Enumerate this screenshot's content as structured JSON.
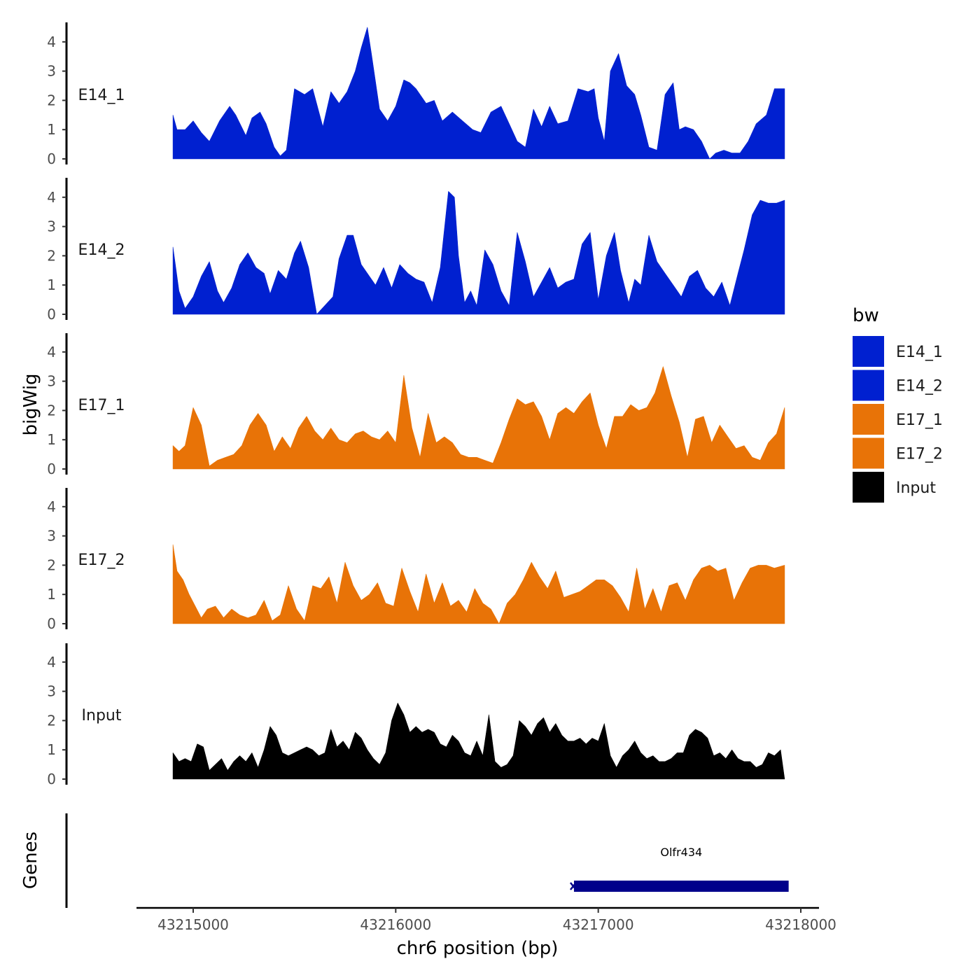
{
  "chart_data": {
    "type": "area",
    "ylabel": "bigWig",
    "xlabel": "chr6 position (bp)",
    "x_ticks": [
      43215000,
      43216000,
      43217000,
      43218000
    ],
    "x_tick_labels": [
      "43215000",
      "43216000",
      "43217000",
      "43218000"
    ],
    "xlim": [
      43214600,
      43218000
    ],
    "ylim": [
      0,
      4.6
    ],
    "y_ticks": [
      0,
      1,
      2,
      3,
      4
    ],
    "y_tick_labels": [
      "0",
      "1",
      "2",
      "3",
      "4"
    ],
    "series": [
      {
        "name": "E14_1",
        "color": "#0020d0",
        "x": [
          43214900,
          43214920,
          43214960,
          43215000,
          43215040,
          43215080,
          43215130,
          43215180,
          43215210,
          43215260,
          43215290,
          43215330,
          43215360,
          43215400,
          43215430,
          43215460,
          43215500,
          43215550,
          43215590,
          43215640,
          43215680,
          43215720,
          43215760,
          43215800,
          43215830,
          43215860,
          43215880,
          43215920,
          43215960,
          43216000,
          43216040,
          43216070,
          43216100,
          43216150,
          43216190,
          43216230,
          43216280,
          43216330,
          43216380,
          43216420,
          43216470,
          43216520,
          43216560,
          43216600,
          43216640,
          43216680,
          43216720,
          43216760,
          43216800,
          43216850,
          43216900,
          43216950,
          43216980,
          43217000,
          43217030,
          43217060,
          43217100,
          43217140,
          43217180,
          43217210,
          43217250,
          43217290,
          43217330,
          43217370,
          43217400,
          43217430,
          43217470,
          43217510,
          43217550,
          43217580,
          43217620,
          43217660,
          43217700,
          43217740,
          43217780,
          43217830,
          43217870,
          43217900,
          43217920
        ],
        "values": [
          1.5,
          1.0,
          1.0,
          1.3,
          0.9,
          0.6,
          1.3,
          1.8,
          1.5,
          0.8,
          1.4,
          1.6,
          1.2,
          0.4,
          0.1,
          0.3,
          2.4,
          2.2,
          2.4,
          1.1,
          2.3,
          1.9,
          2.3,
          3.0,
          3.8,
          4.5,
          3.6,
          1.7,
          1.3,
          1.8,
          2.7,
          2.6,
          2.4,
          1.9,
          2.0,
          1.3,
          1.6,
          1.3,
          1.0,
          0.9,
          1.6,
          1.8,
          1.2,
          0.6,
          0.4,
          1.7,
          1.1,
          1.8,
          1.2,
          1.3,
          2.4,
          2.3,
          2.4,
          1.4,
          0.6,
          3.0,
          3.6,
          2.5,
          2.2,
          1.5,
          0.4,
          0.3,
          2.2,
          2.6,
          1.0,
          1.1,
          1.0,
          0.6,
          0.0,
          0.2,
          0.3,
          0.2,
          0.2,
          0.6,
          1.2,
          1.5,
          2.4,
          2.4,
          2.4
        ]
      },
      {
        "name": "E14_2",
        "color": "#0020d0",
        "x": [
          43214900,
          43214930,
          43214960,
          43215000,
          43215040,
          43215080,
          43215120,
          43215150,
          43215190,
          43215230,
          43215270,
          43215310,
          43215350,
          43215380,
          43215420,
          43215460,
          43215500,
          43215530,
          43215570,
          43215610,
          43215650,
          43215690,
          43215720,
          43215760,
          43215790,
          43215830,
          43215870,
          43215900,
          43215940,
          43215980,
          43216020,
          43216060,
          43216100,
          43216140,
          43216180,
          43216220,
          43216260,
          43216290,
          43216310,
          43216340,
          43216370,
          43216400,
          43216440,
          43216480,
          43216520,
          43216560,
          43216600,
          43216640,
          43216680,
          43216720,
          43216760,
          43216800,
          43216840,
          43216880,
          43216920,
          43216960,
          43217000,
          43217040,
          43217080,
          43217110,
          43217150,
          43217180,
          43217210,
          43217250,
          43217290,
          43217330,
          43217370,
          43217410,
          43217450,
          43217490,
          43217530,
          43217570,
          43217610,
          43217650,
          43217690,
          43217720,
          43217760,
          43217800,
          43217840,
          43217880,
          43217920
        ],
        "values": [
          2.3,
          0.8,
          0.2,
          0.6,
          1.3,
          1.8,
          0.8,
          0.4,
          0.9,
          1.7,
          2.1,
          1.6,
          1.4,
          0.7,
          1.5,
          1.2,
          2.1,
          2.5,
          1.6,
          0.0,
          0.3,
          0.6,
          1.9,
          2.7,
          2.7,
          1.7,
          1.3,
          1.0,
          1.6,
          0.9,
          1.7,
          1.4,
          1.2,
          1.1,
          0.4,
          1.6,
          4.2,
          4.0,
          2.0,
          0.4,
          0.8,
          0.3,
          2.2,
          1.7,
          0.8,
          0.3,
          2.8,
          1.8,
          0.6,
          1.1,
          1.6,
          0.9,
          1.1,
          1.2,
          2.4,
          2.8,
          0.5,
          2.0,
          2.8,
          1.5,
          0.4,
          1.2,
          1.0,
          2.7,
          1.8,
          1.4,
          1.0,
          0.6,
          1.3,
          1.5,
          0.9,
          0.6,
          1.1,
          0.3,
          1.4,
          2.2,
          3.4,
          3.9,
          3.8,
          3.8,
          3.9
        ]
      },
      {
        "name": "E17_1",
        "color": "#e87307",
        "x": [
          43214900,
          43214930,
          43214960,
          43215000,
          43215040,
          43215080,
          43215120,
          43215160,
          43215200,
          43215240,
          43215280,
          43215320,
          43215360,
          43215400,
          43215440,
          43215480,
          43215520,
          43215560,
          43215600,
          43215640,
          43215680,
          43215720,
          43215760,
          43215800,
          43215840,
          43215880,
          43215920,
          43215960,
          43216000,
          43216040,
          43216080,
          43216120,
          43216160,
          43216200,
          43216240,
          43216280,
          43216320,
          43216360,
          43216400,
          43216440,
          43216480,
          43216520,
          43216560,
          43216600,
          43216640,
          43216680,
          43216720,
          43216760,
          43216800,
          43216840,
          43216880,
          43216920,
          43216960,
          43217000,
          43217040,
          43217080,
          43217120,
          43217160,
          43217200,
          43217240,
          43217280,
          43217320,
          43217360,
          43217400,
          43217440,
          43217480,
          43217520,
          43217560,
          43217600,
          43217640,
          43217680,
          43217720,
          43217760,
          43217800,
          43217840,
          43217880,
          43217920
        ],
        "values": [
          0.8,
          0.6,
          0.8,
          2.1,
          1.5,
          0.1,
          0.3,
          0.4,
          0.5,
          0.8,
          1.5,
          1.9,
          1.5,
          0.6,
          1.1,
          0.7,
          1.4,
          1.8,
          1.3,
          1.0,
          1.4,
          1.0,
          0.9,
          1.2,
          1.3,
          1.1,
          1.0,
          1.3,
          0.9,
          3.2,
          1.4,
          0.4,
          1.9,
          0.9,
          1.1,
          0.9,
          0.5,
          0.4,
          0.4,
          0.3,
          0.2,
          0.9,
          1.7,
          2.4,
          2.2,
          2.3,
          1.8,
          1.0,
          1.9,
          2.1,
          1.9,
          2.3,
          2.6,
          1.5,
          0.7,
          1.8,
          1.8,
          2.2,
          2.0,
          2.1,
          2.6,
          3.5,
          2.5,
          1.6,
          0.4,
          1.7,
          1.8,
          0.9,
          1.5,
          1.1,
          0.7,
          0.8,
          0.4,
          0.3,
          0.9,
          1.2,
          2.1
        ]
      },
      {
        "name": "E17_2",
        "color": "#e87307",
        "x": [
          43214900,
          43214920,
          43214950,
          43214980,
          43215010,
          43215040,
          43215070,
          43215110,
          43215150,
          43215190,
          43215230,
          43215270,
          43215310,
          43215350,
          43215390,
          43215430,
          43215470,
          43215510,
          43215550,
          43215590,
          43215630,
          43215670,
          43215710,
          43215750,
          43215790,
          43215830,
          43215870,
          43215910,
          43215950,
          43215990,
          43216030,
          43216070,
          43216110,
          43216150,
          43216190,
          43216230,
          43216270,
          43216310,
          43216350,
          43216390,
          43216430,
          43216470,
          43216510,
          43216550,
          43216590,
          43216630,
          43216670,
          43216710,
          43216750,
          43216790,
          43216830,
          43216870,
          43216910,
          43216950,
          43216990,
          43217030,
          43217070,
          43217110,
          43217150,
          43217190,
          43217230,
          43217270,
          43217310,
          43217350,
          43217390,
          43217430,
          43217470,
          43217510,
          43217550,
          43217590,
          43217630,
          43217670,
          43217710,
          43217750,
          43217790,
          43217830,
          43217870,
          43217920
        ],
        "values": [
          2.7,
          1.8,
          1.5,
          1.0,
          0.6,
          0.2,
          0.5,
          0.6,
          0.2,
          0.5,
          0.3,
          0.2,
          0.3,
          0.8,
          0.1,
          0.3,
          1.3,
          0.5,
          0.1,
          1.3,
          1.2,
          1.6,
          0.7,
          2.1,
          1.3,
          0.8,
          1.0,
          1.4,
          0.7,
          0.6,
          1.9,
          1.1,
          0.4,
          1.7,
          0.7,
          1.4,
          0.6,
          0.8,
          0.4,
          1.2,
          0.7,
          0.5,
          0.0,
          0.7,
          1.0,
          1.5,
          2.1,
          1.6,
          1.2,
          1.8,
          0.9,
          1.0,
          1.1,
          1.3,
          1.5,
          1.5,
          1.3,
          0.9,
          0.4,
          1.9,
          0.5,
          1.2,
          0.4,
          1.3,
          1.4,
          0.8,
          1.5,
          1.9,
          2.0,
          1.8,
          1.9,
          0.8,
          1.4,
          1.9,
          2.0,
          2.0,
          1.9,
          2.0
        ]
      },
      {
        "name": "Input",
        "color": "#000000",
        "x": [
          43214900,
          43214930,
          43214960,
          43214990,
          43215020,
          43215050,
          43215080,
          43215110,
          43215140,
          43215170,
          43215200,
          43215230,
          43215260,
          43215290,
          43215320,
          43215350,
          43215380,
          43215410,
          43215440,
          43215470,
          43215500,
          43215530,
          43215560,
          43215590,
          43215620,
          43215650,
          43215680,
          43215710,
          43215740,
          43215770,
          43215800,
          43215830,
          43215860,
          43215890,
          43215920,
          43215950,
          43215980,
          43216010,
          43216040,
          43216070,
          43216100,
          43216130,
          43216160,
          43216190,
          43216220,
          43216250,
          43216280,
          43216310,
          43216340,
          43216370,
          43216400,
          43216430,
          43216460,
          43216490,
          43216520,
          43216550,
          43216580,
          43216610,
          43216640,
          43216670,
          43216700,
          43216730,
          43216760,
          43216790,
          43216820,
          43216850,
          43216880,
          43216910,
          43216940,
          43216970,
          43217000,
          43217030,
          43217060,
          43217090,
          43217120,
          43217150,
          43217180,
          43217210,
          43217240,
          43217270,
          43217300,
          43217330,
          43217360,
          43217390,
          43217420,
          43217450,
          43217480,
          43217510,
          43217540,
          43217570,
          43217600,
          43217630,
          43217660,
          43217690,
          43217720,
          43217750,
          43217780,
          43217810,
          43217840,
          43217870,
          43217900,
          43217920
        ],
        "values": [
          0.9,
          0.6,
          0.7,
          0.6,
          1.2,
          1.1,
          0.3,
          0.5,
          0.7,
          0.3,
          0.6,
          0.8,
          0.6,
          0.9,
          0.4,
          1.0,
          1.8,
          1.5,
          0.9,
          0.8,
          0.9,
          1.0,
          1.1,
          1.0,
          0.8,
          0.9,
          1.7,
          1.1,
          1.3,
          1.0,
          1.6,
          1.4,
          1.0,
          0.7,
          0.5,
          0.9,
          2.0,
          2.6,
          2.2,
          1.6,
          1.8,
          1.6,
          1.7,
          1.6,
          1.2,
          1.1,
          1.5,
          1.3,
          0.9,
          0.8,
          1.3,
          0.8,
          2.2,
          0.6,
          0.4,
          0.5,
          0.8,
          2.0,
          1.8,
          1.5,
          1.9,
          2.1,
          1.6,
          1.9,
          1.5,
          1.3,
          1.3,
          1.4,
          1.2,
          1.4,
          1.3,
          1.9,
          0.8,
          0.4,
          0.8,
          1.0,
          1.3,
          0.9,
          0.7,
          0.8,
          0.6,
          0.6,
          0.7,
          0.9,
          0.9,
          1.5,
          1.7,
          1.6,
          1.4,
          0.8,
          0.9,
          0.7,
          1.0,
          0.7,
          0.6,
          0.6,
          0.4,
          0.5,
          0.9,
          0.8,
          1.0,
          0.0
        ]
      }
    ],
    "legend": {
      "title": "bw",
      "position": "right",
      "entries": [
        {
          "label": "E14_1",
          "color": "#0020d0"
        },
        {
          "label": "E14_2",
          "color": "#0020d0"
        },
        {
          "label": "E17_1",
          "color": "#e87307"
        },
        {
          "label": "E17_2",
          "color": "#e87307"
        },
        {
          "label": "Input",
          "color": "#000000"
        }
      ]
    },
    "genes_track": {
      "label": "Genes",
      "genes": [
        {
          "name": "Olfr434",
          "start": 43216880,
          "end": 43217940,
          "strand": "-",
          "color": "#00008b"
        }
      ]
    }
  }
}
